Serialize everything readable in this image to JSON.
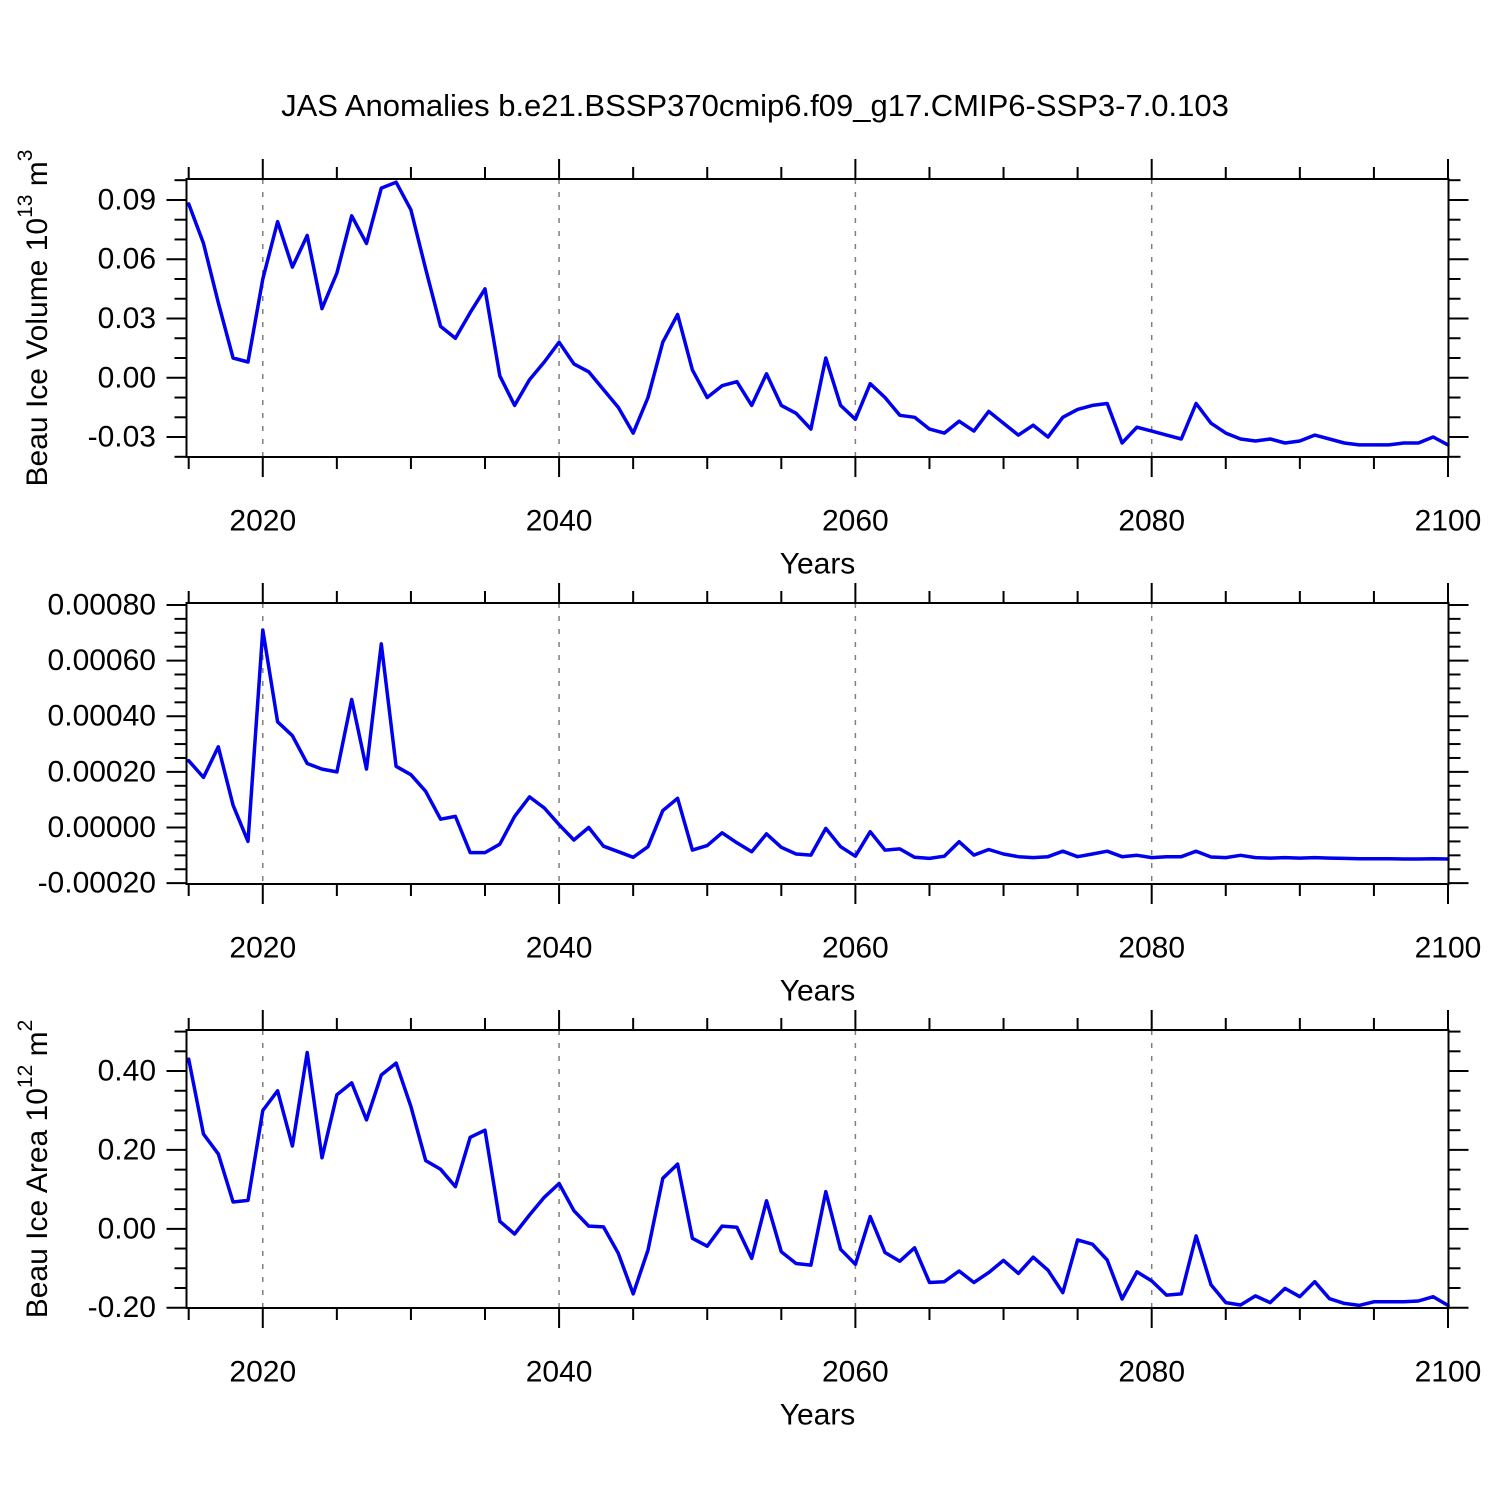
{
  "title": "JAS Anomalies b.e21.BSSP370cmip6.f09_g17.CMIP6-SSP3-7.0.103",
  "colors": {
    "line": "#0000ee",
    "frame": "#000000",
    "grid": "#7f7f7f",
    "text": "#000000",
    "background": "#ffffff"
  },
  "years": [
    2015,
    2016,
    2017,
    2018,
    2019,
    2020,
    2021,
    2022,
    2023,
    2024,
    2025,
    2026,
    2027,
    2028,
    2029,
    2030,
    2031,
    2032,
    2033,
    2034,
    2035,
    2036,
    2037,
    2038,
    2039,
    2040,
    2041,
    2042,
    2043,
    2044,
    2045,
    2046,
    2047,
    2048,
    2049,
    2050,
    2051,
    2052,
    2053,
    2054,
    2055,
    2056,
    2057,
    2058,
    2059,
    2060,
    2061,
    2062,
    2063,
    2064,
    2065,
    2066,
    2067,
    2068,
    2069,
    2070,
    2071,
    2072,
    2073,
    2074,
    2075,
    2076,
    2077,
    2078,
    2079,
    2080,
    2081,
    2082,
    2083,
    2084,
    2085,
    2086,
    2087,
    2088,
    2089,
    2090,
    2091,
    2092,
    2093,
    2094,
    2095,
    2096,
    2097,
    2098,
    2099,
    2100
  ],
  "chart_data": [
    {
      "type": "line",
      "id": "beau-ice-volume",
      "ylabel": "Beau Ice Volume 10^{13} m^{3}",
      "xlabel": "Years",
      "xlim": [
        2015,
        2100
      ],
      "ylim": [
        -0.0401,
        0.1006
      ],
      "yticks": [
        0.09,
        0.06,
        0.03,
        0.0,
        -0.03
      ],
      "ytick_labels": [
        "0.09",
        "0.06",
        "0.03",
        "0.00",
        "-0.03"
      ],
      "y_minor_step": 0.01,
      "xticks": [
        2020,
        2040,
        2060,
        2080,
        2100
      ],
      "xtick_labels": [
        "2020",
        "2040",
        "2060",
        "2080",
        "2100"
      ],
      "x_minor_step": 5,
      "grid_x": [
        2020,
        2040,
        2060,
        2080
      ],
      "values": [
        0.088,
        0.068,
        0.038,
        0.01,
        0.008,
        0.05,
        0.079,
        0.056,
        0.072,
        0.035,
        0.053,
        0.082,
        0.068,
        0.096,
        0.099,
        0.085,
        0.055,
        0.026,
        0.02,
        0.033,
        0.045,
        0.001,
        -0.014,
        -0.001,
        0.008,
        0.018,
        0.007,
        0.003,
        -0.006,
        -0.015,
        -0.028,
        -0.01,
        0.018,
        0.032,
        0.004,
        -0.01,
        -0.004,
        -0.002,
        -0.014,
        0.002,
        -0.014,
        -0.018,
        -0.026,
        0.01,
        -0.014,
        -0.021,
        -0.003,
        -0.01,
        -0.019,
        -0.02,
        -0.026,
        -0.028,
        -0.022,
        -0.027,
        -0.017,
        -0.023,
        -0.029,
        -0.024,
        -0.03,
        -0.02,
        -0.016,
        -0.014,
        -0.013,
        -0.033,
        -0.025,
        -0.027,
        -0.029,
        -0.031,
        -0.013,
        -0.023,
        -0.028,
        -0.031,
        -0.032,
        -0.031,
        -0.033,
        -0.032,
        -0.029,
        -0.031,
        -0.033,
        -0.034,
        -0.034,
        -0.034,
        -0.033,
        -0.033,
        -0.03,
        -0.034
      ]
    },
    {
      "type": "line",
      "id": "middle-series",
      "ylabel": "",
      "xlabel": "Years",
      "xlim": [
        2015,
        2100
      ],
      "ylim": [
        -0.000203,
        0.000807
      ],
      "yticks": [
        0.0008,
        0.0006,
        0.0004,
        0.0002,
        0.0,
        -0.0002
      ],
      "ytick_labels": [
        "0.00080",
        "0.00060",
        "0.00040",
        "0.00020",
        "0.00000",
        "-0.00020"
      ],
      "y_minor_step": 5e-05,
      "xticks": [
        2020,
        2040,
        2060,
        2080,
        2100
      ],
      "xtick_labels": [
        "2020",
        "2040",
        "2060",
        "2080",
        "2100"
      ],
      "x_minor_step": 5,
      "grid_x": [
        2020,
        2040,
        2060,
        2080
      ],
      "values": [
        0.00024,
        0.00018,
        0.00029,
        8e-05,
        -5e-05,
        0.00071,
        0.00038,
        0.00033,
        0.00023,
        0.00021,
        0.0002,
        0.00046,
        0.00021,
        0.00066,
        0.00022,
        0.00019,
        0.00013,
        3e-05,
        4e-05,
        -9e-05,
        -9e-05,
        -6e-05,
        4e-05,
        0.00011,
        7e-05,
        1e-05,
        -4.5e-05,
        0.0,
        -6.7e-05,
        -8.7e-05,
        -0.000107,
        -6.9e-05,
        6.1e-05,
        0.000105,
        -8.1e-05,
        -6.5e-05,
        -1.9e-05,
        -5.5e-05,
        -8.7e-05,
        -2.3e-05,
        -7.1e-05,
        -9.5e-05,
        -9.9e-05,
        -3e-06,
        -6.9e-05,
        -0.000103,
        -1.5e-05,
        -8.1e-05,
        -7.7e-05,
        -0.000107,
        -0.000111,
        -0.000103,
        -5.1e-05,
        -9.9e-05,
        -7.9e-05,
        -9.5e-05,
        -0.000105,
        -0.000108,
        -0.000105,
        -8.5e-05,
        -0.000105,
        -9.5e-05,
        -8.5e-05,
        -0.000105,
        -0.0001,
        -0.000108,
        -0.000105,
        -0.000105,
        -8.5e-05,
        -0.000106,
        -0.000108,
        -0.0001,
        -0.000108,
        -0.00011,
        -0.000108,
        -0.00011,
        -0.000108,
        -0.00011,
        -0.000111,
        -0.000112,
        -0.000112,
        -0.000112,
        -0.000113,
        -0.000113,
        -0.000112,
        -0.000113
      ]
    },
    {
      "type": "line",
      "id": "beau-ice-area",
      "ylabel": "Beau Ice Area 10^{12} m^{2}",
      "xlabel": "Years",
      "xlim": [
        2015,
        2100
      ],
      "ylim": [
        -0.2007,
        0.504
      ],
      "yticks": [
        0.4,
        0.2,
        0.0,
        -0.2
      ],
      "ytick_labels": [
        "0.40",
        "0.20",
        "0.00",
        "-0.20"
      ],
      "y_minor_step": 0.05,
      "xticks": [
        2020,
        2040,
        2060,
        2080,
        2100
      ],
      "xtick_labels": [
        "2020",
        "2040",
        "2060",
        "2080",
        "2100"
      ],
      "x_minor_step": 5,
      "grid_x": [
        2020,
        2040,
        2060,
        2080
      ],
      "values": [
        0.43,
        0.24,
        0.19,
        0.068,
        0.072,
        0.3,
        0.35,
        0.21,
        0.447,
        0.18,
        0.34,
        0.37,
        0.276,
        0.39,
        0.42,
        0.31,
        0.173,
        0.151,
        0.107,
        0.232,
        0.25,
        0.019,
        -0.013,
        0.035,
        0.08,
        0.115,
        0.046,
        0.007,
        0.005,
        -0.062,
        -0.165,
        -0.054,
        0.128,
        0.164,
        -0.024,
        -0.044,
        0.007,
        0.004,
        -0.075,
        0.071,
        -0.058,
        -0.088,
        -0.092,
        0.094,
        -0.052,
        -0.09,
        0.031,
        -0.06,
        -0.082,
        -0.048,
        -0.136,
        -0.134,
        -0.107,
        -0.136,
        -0.111,
        -0.08,
        -0.113,
        -0.072,
        -0.105,
        -0.162,
        -0.028,
        -0.039,
        -0.079,
        -0.178,
        -0.109,
        -0.132,
        -0.168,
        -0.165,
        -0.018,
        -0.142,
        -0.187,
        -0.193,
        -0.17,
        -0.187,
        -0.151,
        -0.172,
        -0.134,
        -0.177,
        -0.189,
        -0.194,
        -0.185,
        -0.185,
        -0.185,
        -0.183,
        -0.172,
        -0.194
      ]
    }
  ]
}
